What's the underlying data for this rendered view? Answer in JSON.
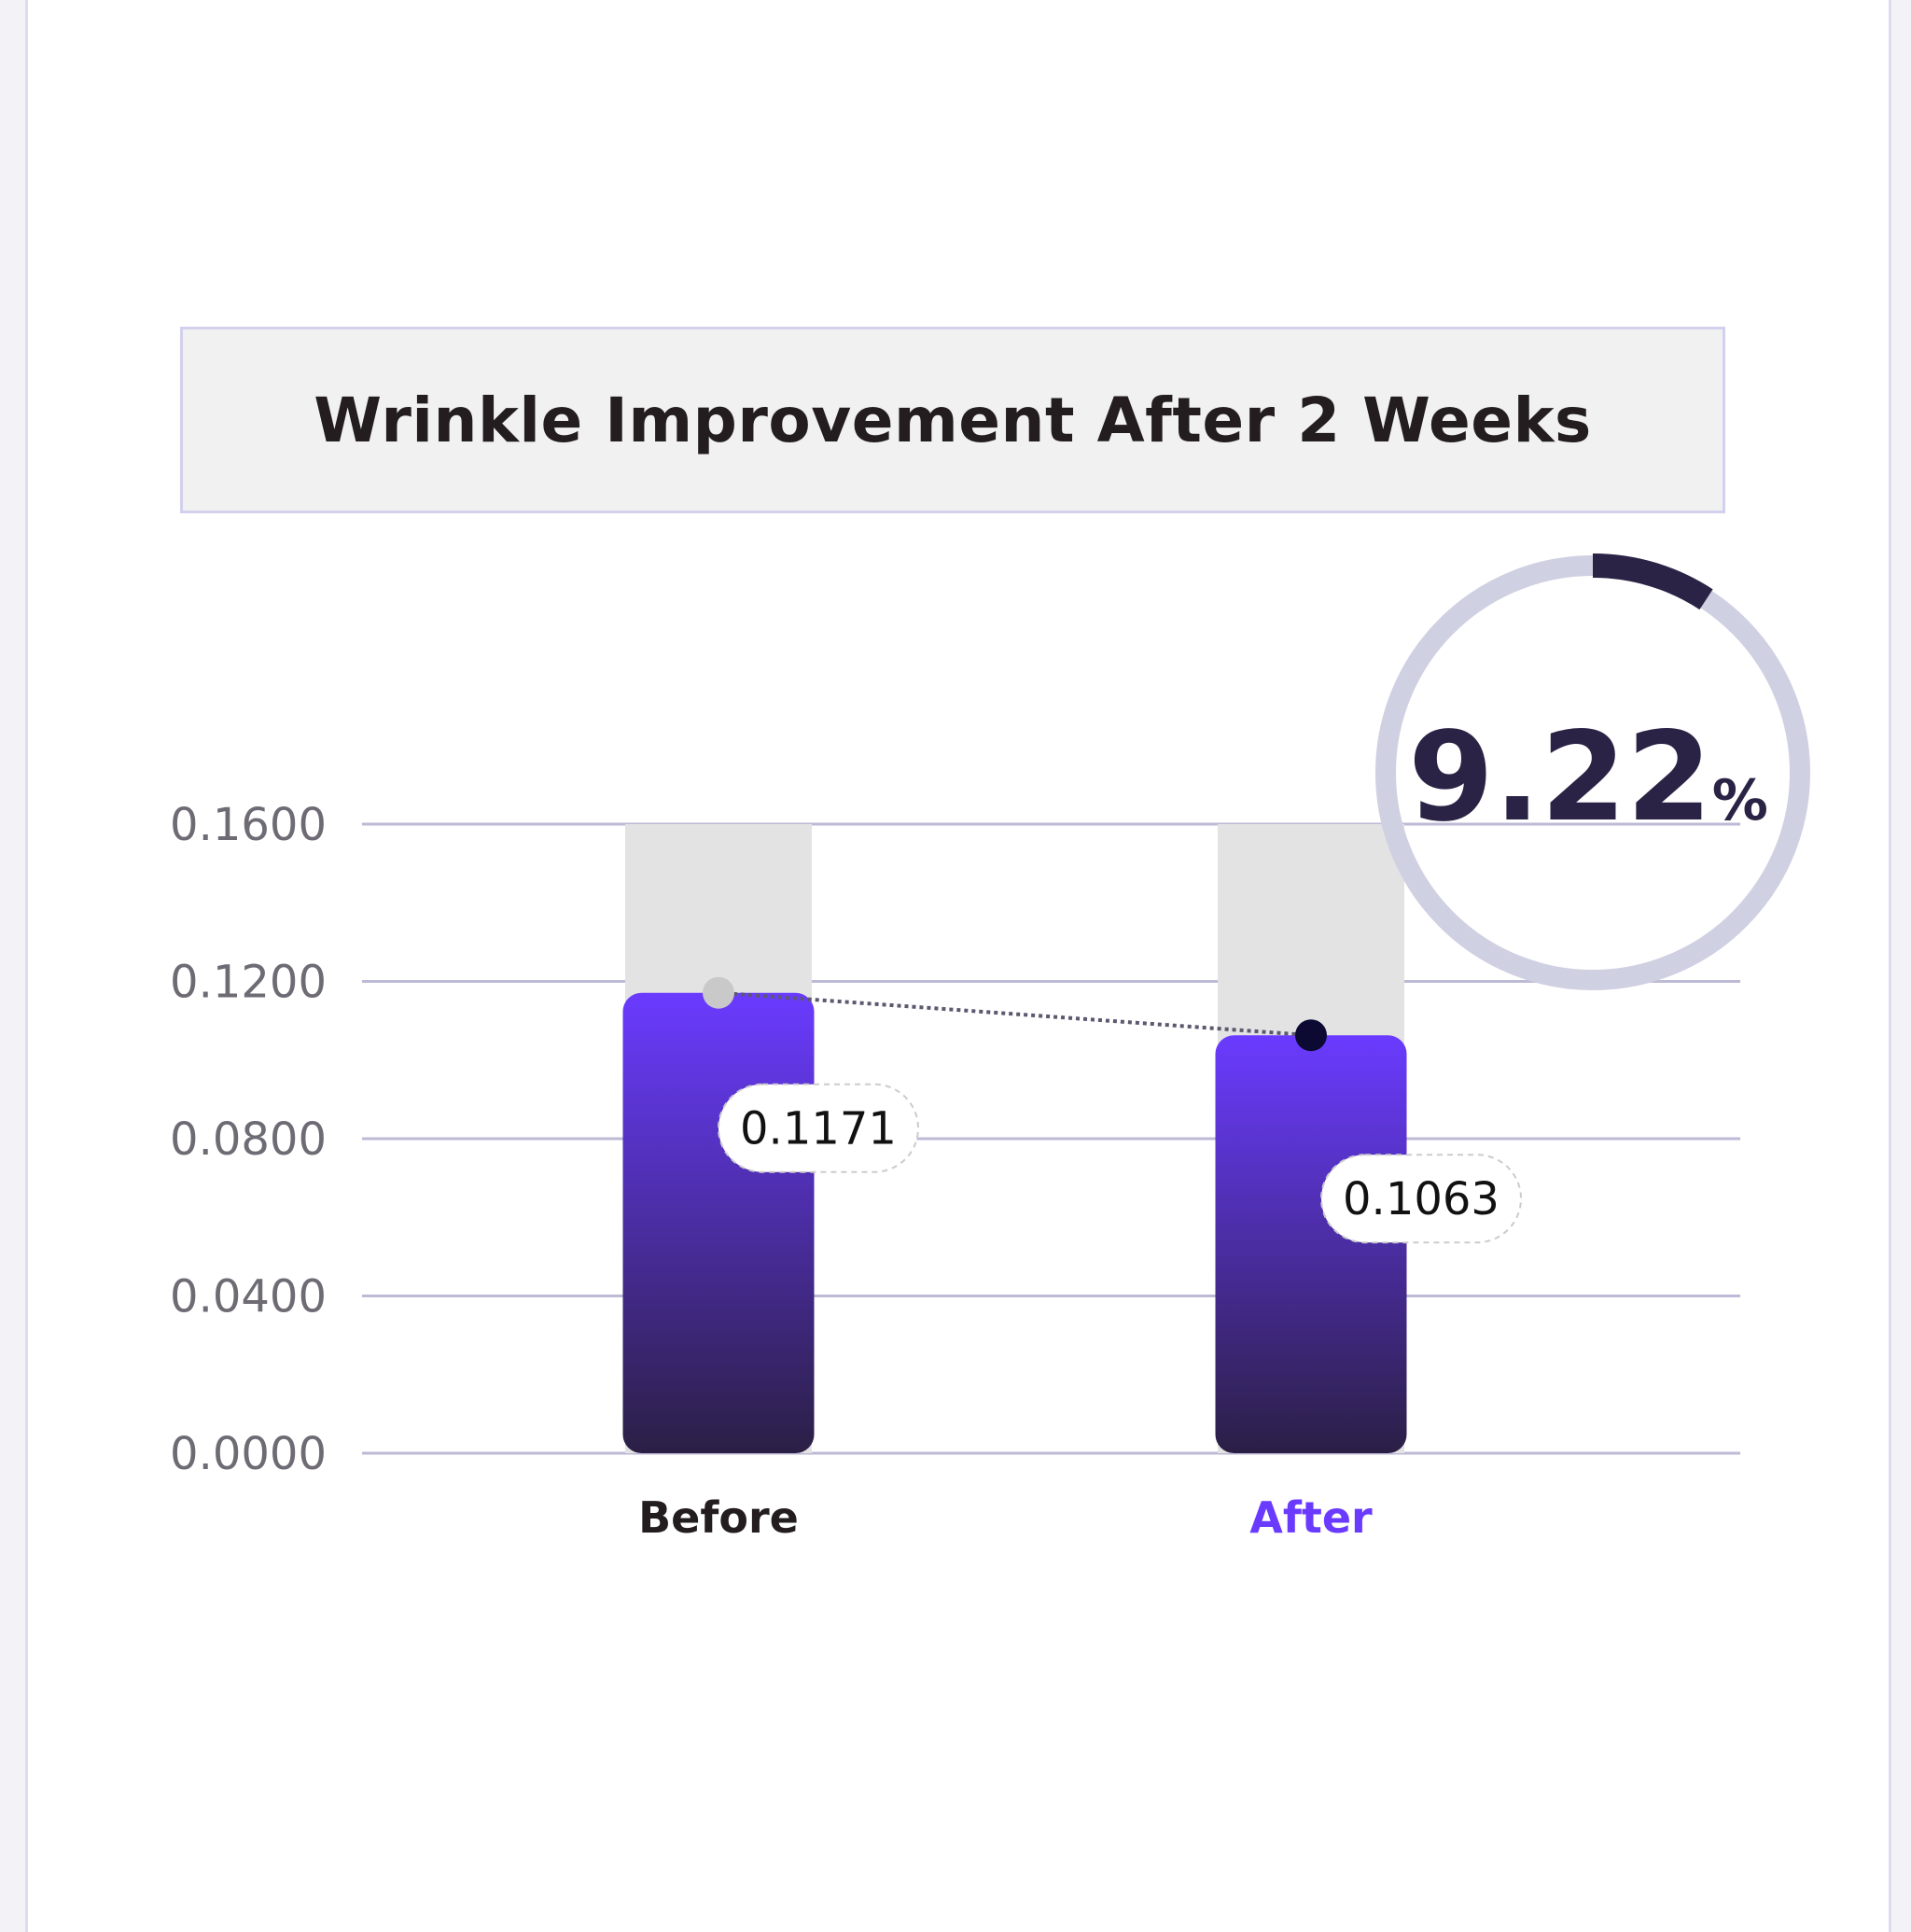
{
  "title": "Wrinkle Improvement After 2 Weeks",
  "improvement": {
    "value": "9.22",
    "unit": "%",
    "fraction": 0.0922
  },
  "colors": {
    "bar_top": "#6a3bff",
    "bar_bottom": "#2b1f45",
    "track": "#e3e3e3",
    "grid": "#bcbad4",
    "ring_track": "#cfd0e2",
    "ring_progress": "#2b2345",
    "after_label": "#6a3bff",
    "before_label": "#231d1f"
  },
  "chart_data": {
    "type": "bar",
    "title": "Wrinkle Improvement After 2 Weeks",
    "categories": [
      "Before",
      "After"
    ],
    "values": [
      0.1171,
      0.1063
    ],
    "data_labels": [
      "0.1171",
      "0.1063"
    ],
    "ylim": [
      0,
      0.16
    ],
    "yticks": [
      "0.0000",
      "0.0400",
      "0.0800",
      "0.1200",
      "0.1600"
    ],
    "ytick_values": [
      0,
      0.04,
      0.08,
      0.12,
      0.16
    ],
    "grid": true,
    "xlabel": "",
    "ylabel": ""
  }
}
